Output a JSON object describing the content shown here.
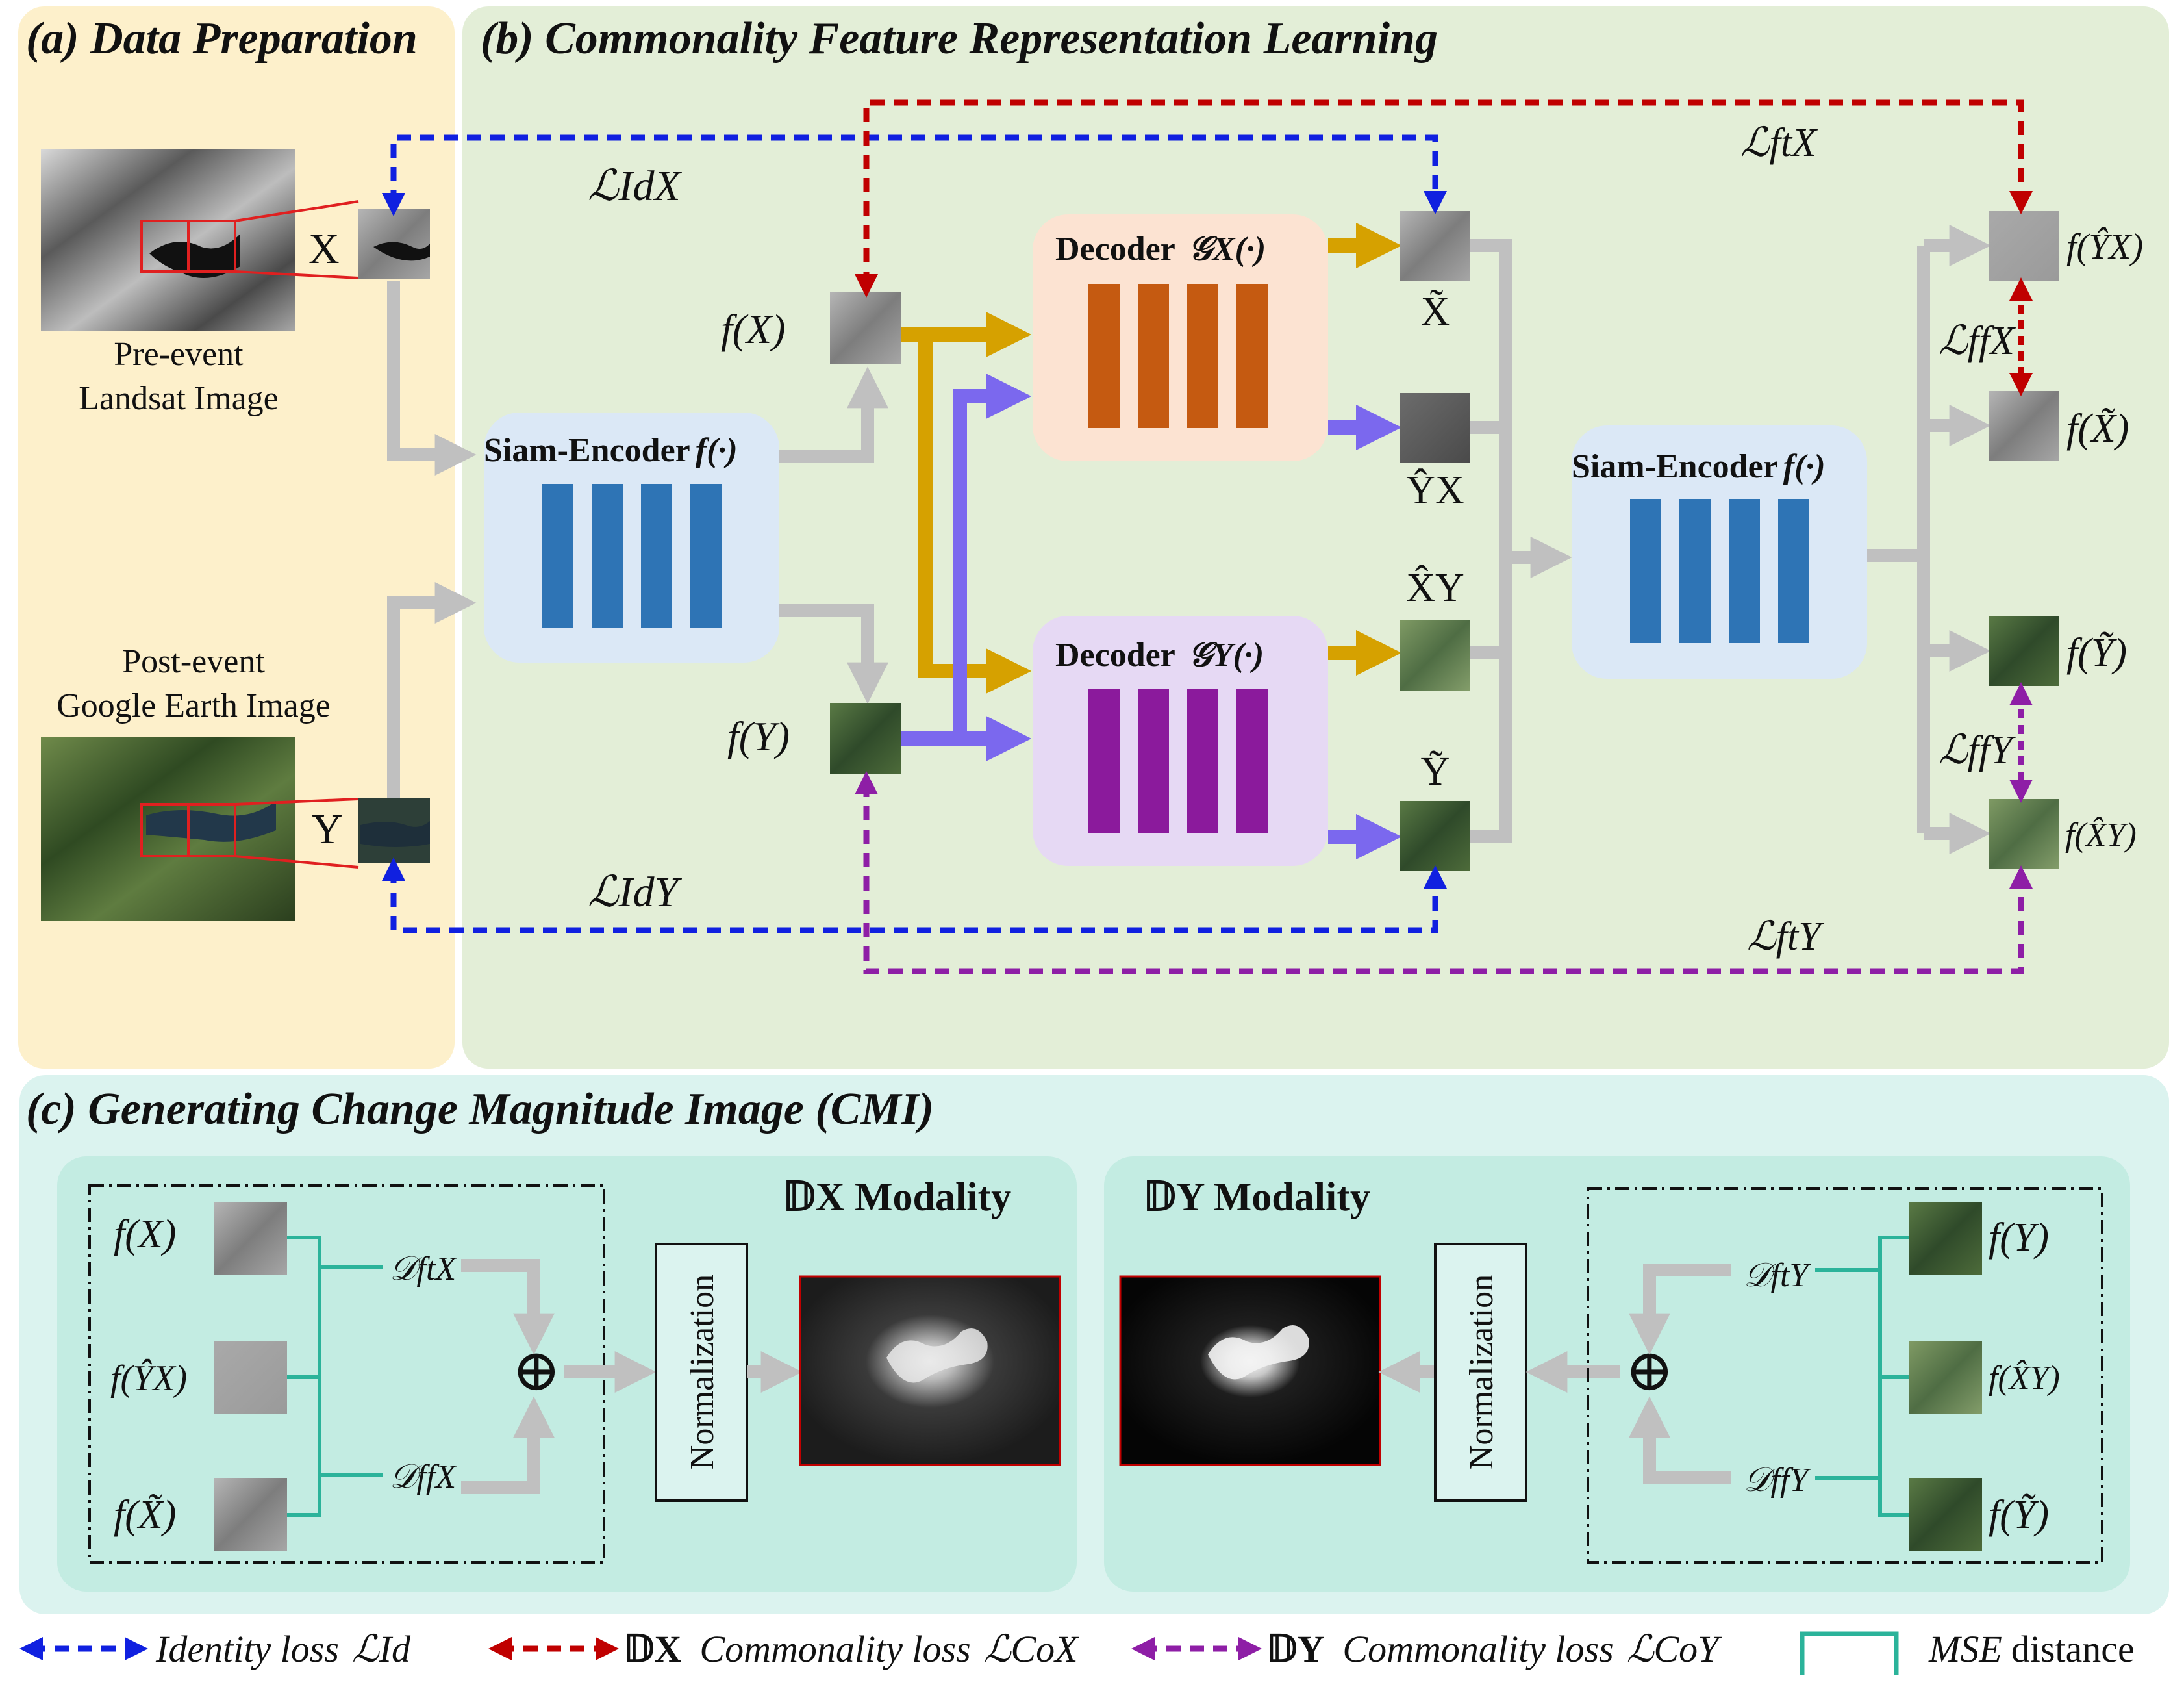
{
  "panels": {
    "a_title": "(a) Data Preparation",
    "b_title": "(b) Commonality Feature Representation Learning",
    "c_title": "(c) Generating Change Magnitude Image (CMI)"
  },
  "data_prep": {
    "pre_event_line1": "Pre-event",
    "pre_event_line2": "Landsat Image",
    "post_event_line1": "Post-event",
    "post_event_line2": "Google Earth Image",
    "x_label": "X",
    "y_label": "Y"
  },
  "encoder": {
    "left_label": "Siam-Encoder",
    "right_label": "Siam-Encoder",
    "func": "f(·)"
  },
  "decoders": {
    "x_label": "Decoder",
    "x_func": "𝒢X(·)",
    "y_label": "Decoder",
    "y_func": "𝒢Y(·)"
  },
  "features": {
    "fx": "f(X)",
    "fy": "f(Y)",
    "x_tilde": "X̃",
    "y_hat_x": "ŶX",
    "x_hat_y": "X̂Y",
    "y_tilde": "Ỹ",
    "f_y_hat_x": "f(ŶX)",
    "f_x_tilde": "f(X̃)",
    "f_y_tilde": "f(Ỹ)",
    "f_x_hat_y": "f(X̂Y)"
  },
  "losses": {
    "lid_x": "ℒIdX",
    "lid_y": "ℒIdY",
    "lft_x": "ℒftX",
    "lft_y": "ℒftY",
    "lff_x": "ℒffX",
    "lff_y": "ℒffY"
  },
  "cmi": {
    "dx_modality": "𝔻X Modality",
    "dy_modality": "𝔻Y Modality",
    "normalization": "Normalization",
    "oplus": "⊕",
    "dft_x": "𝒟ftX",
    "dff_x": "𝒟ffX",
    "dft_y": "𝒟ftY",
    "dff_y": "𝒟ffY",
    "fx": "f(X)",
    "f_y_hat_x": "f(ŶX)",
    "f_x_tilde": "f(X̃)",
    "fy": "f(Y)",
    "f_x_hat_y": "f(X̂Y)",
    "f_y_tilde": "f(Ỹ)"
  },
  "legend": {
    "identity": "Identity loss",
    "identity_sym": "ℒId",
    "dx_sym": "𝔻X",
    "dx_text": "Commonality loss",
    "dx_loss": "ℒCoX",
    "dy_sym": "𝔻Y",
    "dy_text": "Commonality loss",
    "dy_loss": "ℒCoY",
    "mse_italic": "MSE",
    "mse_rest": "distance"
  },
  "colors": {
    "panel_a": "#fdf0cb",
    "panel_b": "#e3eed7",
    "panel_c": "#dbf3ef",
    "sub_c": "#c3ece2",
    "encoder_box": "#dbe8f6",
    "encoder_bar": "#2e74b5",
    "decoder_x_box": "#fce3d2",
    "decoder_x_bar": "#c55a11",
    "decoder_y_box": "#e6d9f4",
    "decoder_y_bar": "#8b1a9c",
    "arrow_gray": "#c0c0c0",
    "arrow_gold": "#d6a100",
    "arrow_violet": "#7b68ee",
    "identity_blue": "#1020e0",
    "dx_red": "#c00000",
    "dy_purple": "#8e1ea6",
    "mse_teal": "#2bb39a"
  }
}
